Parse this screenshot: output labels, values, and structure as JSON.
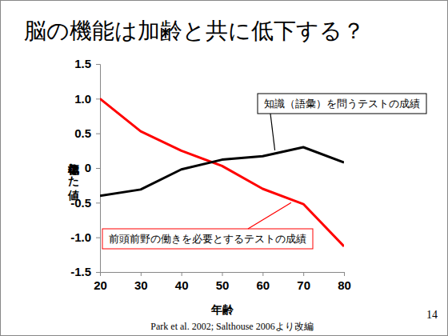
{
  "chart_data": {
    "type": "line",
    "title": "脳の機能は加齢と共に低下する？",
    "x_label": "年齢",
    "y_label": "標準化した値",
    "source": "Park et al. 2002; Salthouse 2006より改編",
    "page": "14",
    "x": [
      20,
      30,
      40,
      50,
      60,
      70,
      80
    ],
    "series": [
      {
        "name": "前頭前野の働きを必要とするテストの成績",
        "color": "#ff0000",
        "values": [
          1.0,
          0.53,
          0.25,
          0.03,
          -0.3,
          -0.52,
          -1.13
        ]
      },
      {
        "name": "知識（語彙）を問うテストの成績",
        "color": "#000000",
        "values": [
          -0.4,
          -0.31,
          -0.02,
          0.12,
          0.17,
          0.3,
          0.08
        ]
      }
    ],
    "xlim": [
      20,
      80
    ],
    "xticks": [
      20,
      30,
      40,
      50,
      60,
      70,
      80
    ],
    "ylim": [
      -1.5,
      1.5
    ],
    "yticks": [
      {
        "value": -1.5,
        "label": "-1.5"
      },
      {
        "value": -1.0,
        "label": "-1.0"
      },
      -0.5,
      0,
      0.5,
      {
        "value": 1.0,
        "label": "1.0"
      },
      1.5
    ],
    "grid": false
  }
}
